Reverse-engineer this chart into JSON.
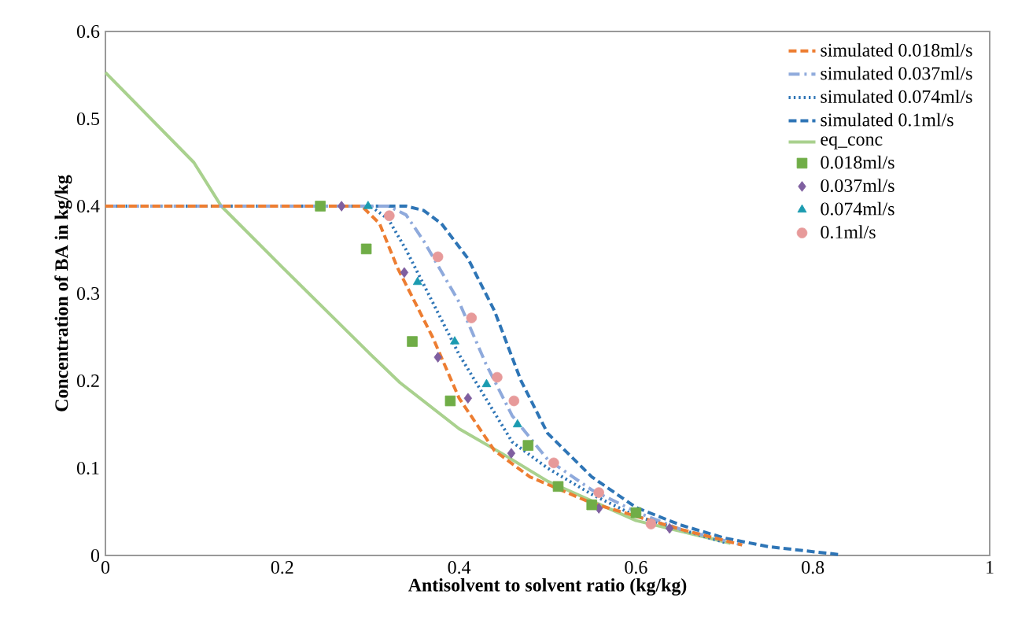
{
  "chart_data": {
    "type": "line",
    "xlabel": "Antisolvent to solvent ratio (kg/kg)",
    "ylabel": "Concentration of BA in kg/kg",
    "xlim": [
      0,
      1
    ],
    "ylim": [
      0,
      0.6
    ],
    "xticks": [
      0,
      0.2,
      0.4,
      0.6,
      0.8,
      1
    ],
    "yticks": [
      0,
      0.1,
      0.2,
      0.3,
      0.4,
      0.5,
      0.6
    ],
    "grid": false,
    "legend": "top right",
    "series": [
      {
        "name": "simulated 0.018ml/s",
        "color": "#ed7d31",
        "line_style": "dashed",
        "marker": "none",
        "x": [
          0,
          0.2,
          0.29,
          0.31,
          0.33,
          0.35,
          0.37,
          0.4,
          0.44,
          0.48,
          0.55,
          0.6,
          0.65,
          0.72
        ],
        "values": [
          0.4,
          0.4,
          0.4,
          0.38,
          0.33,
          0.29,
          0.25,
          0.18,
          0.12,
          0.09,
          0.06,
          0.045,
          0.03,
          0.012
        ]
      },
      {
        "name": "simulated 0.037ml/s",
        "color": "#8faadc",
        "line_style": "dashdot",
        "marker": "none",
        "x": [
          0,
          0.2,
          0.32,
          0.34,
          0.36,
          0.4,
          0.43,
          0.46,
          0.5,
          0.55,
          0.6,
          0.65,
          0.72
        ],
        "values": [
          0.4,
          0.4,
          0.4,
          0.39,
          0.36,
          0.29,
          0.22,
          0.16,
          0.11,
          0.075,
          0.05,
          0.03,
          0.012
        ]
      },
      {
        "name": "simulated 0.074ml/s",
        "color": "#2e75b6",
        "line_style": "dotted",
        "marker": "none",
        "x": [
          0,
          0.2,
          0.3,
          0.32,
          0.34,
          0.37,
          0.4,
          0.43,
          0.46,
          0.5,
          0.55,
          0.6,
          0.7
        ],
        "values": [
          0.4,
          0.4,
          0.4,
          0.385,
          0.35,
          0.29,
          0.23,
          0.18,
          0.13,
          0.1,
          0.07,
          0.045,
          0.015
        ]
      },
      {
        "name": "simulated 0.1ml/s",
        "color": "#2e75b6",
        "line_style": "dashed",
        "marker": "none",
        "x": [
          0,
          0.2,
          0.34,
          0.36,
          0.38,
          0.41,
          0.44,
          0.47,
          0.5,
          0.55,
          0.6,
          0.65,
          0.7,
          0.75,
          0.83
        ],
        "values": [
          0.4,
          0.4,
          0.4,
          0.395,
          0.38,
          0.34,
          0.28,
          0.2,
          0.14,
          0.09,
          0.055,
          0.035,
          0.02,
          0.01,
          0.001
        ]
      },
      {
        "name": "eq_conc",
        "color": "#a9d18e",
        "line_style": "solid",
        "marker": "none",
        "x": [
          0,
          0.1,
          0.131,
          0.2,
          0.3,
          0.333,
          0.4,
          0.448,
          0.5,
          0.6,
          0.707
        ],
        "values": [
          0.553,
          0.45,
          0.4,
          0.33,
          0.23,
          0.198,
          0.145,
          0.117,
          0.085,
          0.04,
          0.014
        ]
      },
      {
        "name": "0.018ml/s",
        "type": "scatter",
        "color": "#70ad47",
        "marker": "square",
        "x": [
          0.243,
          0.295,
          0.347,
          0.39,
          0.478,
          0.512,
          0.55,
          0.6
        ],
        "values": [
          0.4,
          0.351,
          0.245,
          0.177,
          0.126,
          0.079,
          0.058,
          0.049
        ]
      },
      {
        "name": "0.037ml/s",
        "type": "scatter",
        "color": "#7f5fa0",
        "marker": "diamond",
        "x": [
          0.267,
          0.338,
          0.376,
          0.41,
          0.459,
          0.558,
          0.638
        ],
        "values": [
          0.4,
          0.324,
          0.227,
          0.18,
          0.117,
          0.054,
          0.031
        ]
      },
      {
        "name": "0.074ml/s",
        "type": "scatter",
        "color": "#1b9bb0",
        "marker": "triangle",
        "x": [
          0.297,
          0.353,
          0.395,
          0.431,
          0.466
        ],
        "values": [
          0.4,
          0.313,
          0.245,
          0.196,
          0.15
        ]
      },
      {
        "name": "0.1ml/s",
        "type": "scatter",
        "color": "#e79a9a",
        "marker": "circle",
        "x": [
          0.321,
          0.376,
          0.414,
          0.443,
          0.462,
          0.507,
          0.558,
          0.617
        ],
        "values": [
          0.389,
          0.342,
          0.272,
          0.204,
          0.177,
          0.106,
          0.072,
          0.036
        ]
      }
    ]
  }
}
